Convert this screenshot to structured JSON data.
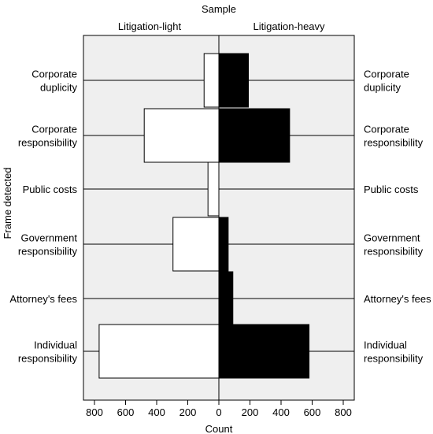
{
  "chart_data": {
    "type": "bar",
    "subtype": "back-to-back horizontal bar",
    "title": "Sample",
    "xlabel": "Count",
    "ylabel": "Frame detected",
    "xlim": [
      -800,
      800
    ],
    "x_ticks": [
      -800,
      -600,
      -400,
      -200,
      0,
      200,
      400,
      600,
      800
    ],
    "x_tick_labels": [
      "800",
      "600",
      "400",
      "200",
      "0",
      "200",
      "400",
      "600",
      "800"
    ],
    "grid": false,
    "panel_background": "#efefef",
    "categories": [
      [
        "Corporate",
        "duplicity"
      ],
      [
        "Corporate",
        "responsibility"
      ],
      [
        "Public costs"
      ],
      [
        "Government",
        "responsibility"
      ],
      [
        "Attorney's fees"
      ],
      [
        "Individual",
        "responsibility"
      ]
    ],
    "series": [
      {
        "name": "Litigation-light",
        "side": "left",
        "fill": "#ffffff",
        "values": [
          95,
          480,
          70,
          295,
          0,
          770
        ]
      },
      {
        "name": "Litigation-heavy",
        "side": "right",
        "fill": "#000000",
        "values": [
          190,
          455,
          0,
          60,
          90,
          580
        ]
      }
    ]
  }
}
